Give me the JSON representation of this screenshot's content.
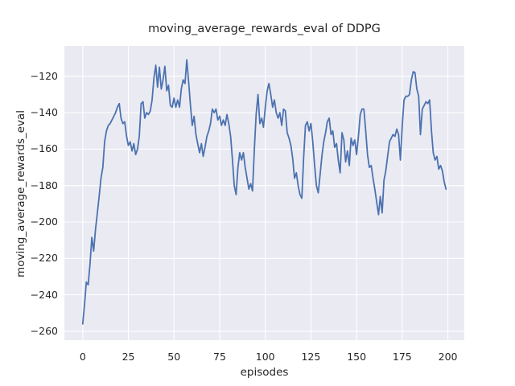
{
  "figure": {
    "title": "moving_average_rewards_eval of DDPG",
    "xlabel": "episodes",
    "ylabel": "moving_average_rewards_eval"
  },
  "chart_data": {
    "type": "line",
    "title": "moving_average_rewards_eval of DDPG",
    "xlabel": "episodes",
    "ylabel": "moving_average_rewards_eval",
    "x_ticks": [
      0,
      25,
      50,
      75,
      100,
      125,
      150,
      175,
      200
    ],
    "y_ticks": [
      -120,
      -140,
      -160,
      -180,
      -200,
      -220,
      -240,
      -260
    ],
    "xlim": [
      -10.05,
      209.0
    ],
    "ylim": [
      -264.9,
      -103.3
    ],
    "grid": true,
    "legend": "none",
    "line_color": "#4c72b0",
    "plot_bg": "#eaeaf2",
    "grid_color": "#ffffff",
    "x_start": 0,
    "x_step": 1,
    "series": [
      {
        "name": "moving_average_rewards_eval",
        "values": [
          -256,
          -245,
          -233,
          -234.5,
          -223,
          -208.5,
          -216,
          -204,
          -195,
          -186,
          -176,
          -170,
          -156,
          -150,
          -147,
          -146,
          -144,
          -142,
          -140,
          -137,
          -135,
          -143,
          -146,
          -145,
          -153,
          -158,
          -156,
          -161,
          -157,
          -163,
          -160,
          -153,
          -135,
          -134,
          -143,
          -140,
          -141,
          -139,
          -133,
          -121,
          -114,
          -126,
          -115,
          -127,
          -122,
          -114.5,
          -128,
          -125,
          -136,
          -137,
          -132,
          -137,
          -133,
          -137,
          -127,
          -122,
          -124,
          -111,
          -123,
          -136,
          -147,
          -142,
          -152,
          -157,
          -162,
          -157,
          -164,
          -159,
          -153,
          -150,
          -146,
          -138,
          -140,
          -138,
          -144,
          -142,
          -147,
          -144,
          -147,
          -141,
          -146,
          -153,
          -166,
          -180,
          -185,
          -170,
          -162,
          -166,
          -162,
          -170,
          -176,
          -182,
          -179,
          -183,
          -160,
          -141,
          -130,
          -146,
          -143,
          -148,
          -137,
          -128,
          -124,
          -130,
          -137,
          -133,
          -140,
          -143,
          -140,
          -147,
          -138,
          -139,
          -151,
          -154,
          -158,
          -165,
          -176,
          -173,
          -180,
          -185,
          -187,
          -165,
          -147,
          -145,
          -150,
          -146,
          -156,
          -169,
          -180,
          -184,
          -174,
          -164,
          -156,
          -151,
          -145,
          -143,
          -152,
          -150,
          -159,
          -157,
          -166,
          -173,
          -151,
          -155,
          -167,
          -161,
          -169,
          -154,
          -158,
          -155,
          -163,
          -153,
          -141,
          -138,
          -138,
          -150,
          -163,
          -170,
          -169,
          -176,
          -182,
          -189,
          -196,
          -186,
          -195,
          -177,
          -172,
          -164,
          -156,
          -154,
          -152,
          -153,
          -149,
          -152,
          -166,
          -147,
          -133,
          -131,
          -131,
          -130,
          -122,
          -117.5,
          -118,
          -127,
          -131,
          -152,
          -138,
          -136,
          -134,
          -135,
          -133,
          -150,
          -162,
          -166,
          -164,
          -171,
          -169,
          -172,
          -178,
          -182
        ]
      }
    ]
  }
}
